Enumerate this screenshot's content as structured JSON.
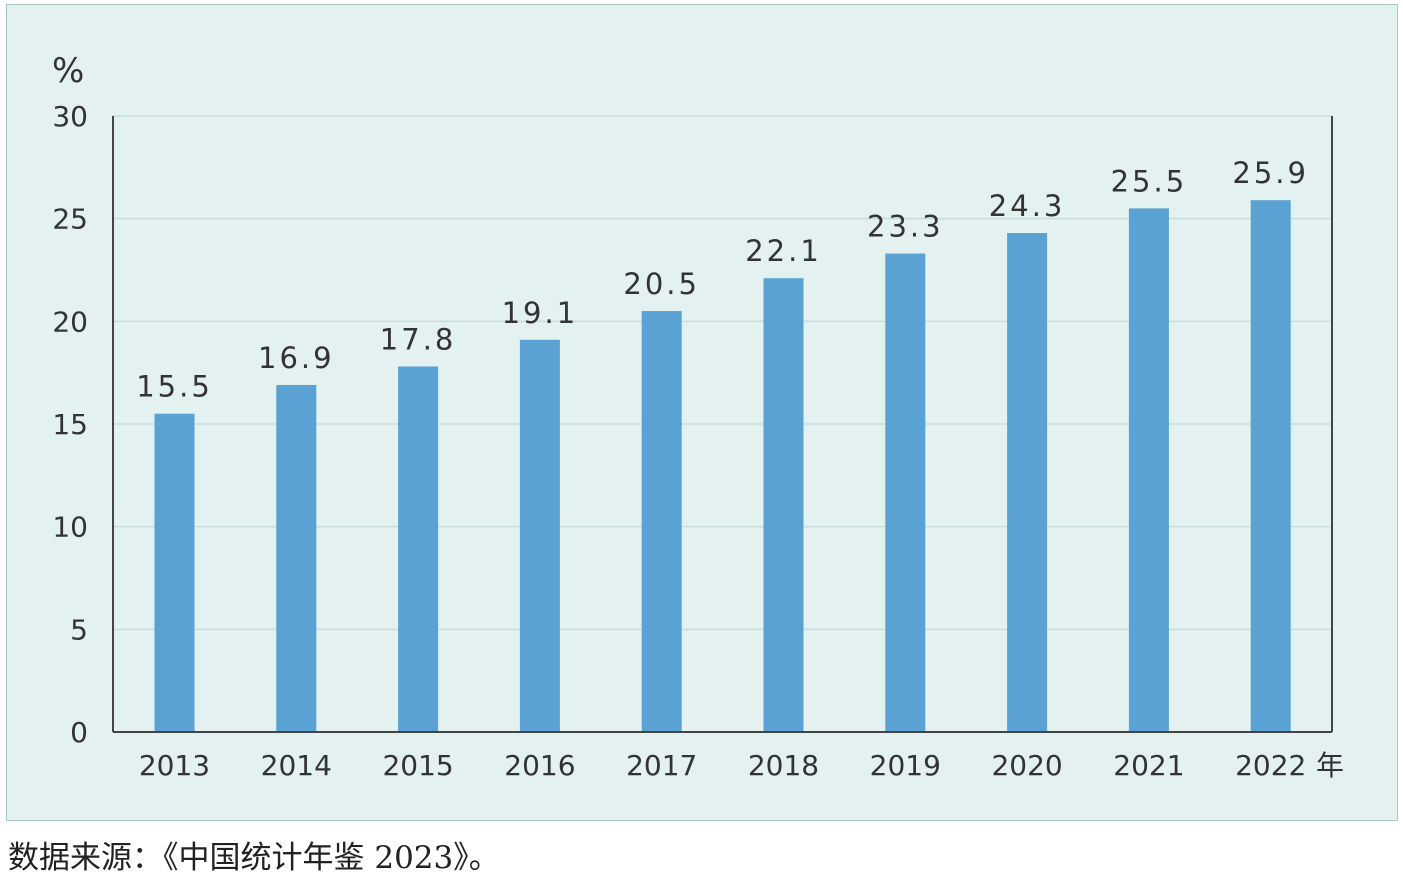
{
  "chart_data": {
    "type": "bar",
    "categories": [
      "2013",
      "2014",
      "2015",
      "2016",
      "2017",
      "2018",
      "2019",
      "2020",
      "2021",
      "2022"
    ],
    "values": [
      15.5,
      16.9,
      17.8,
      19.1,
      20.5,
      22.1,
      23.3,
      24.3,
      25.5,
      25.9
    ],
    "value_labels": [
      "15.5",
      "16.9",
      "17.8",
      "19.1",
      "20.5",
      "22.1",
      "23.3",
      "24.3",
      "25.5",
      "25.9"
    ],
    "ylabel": "%",
    "xlabel": "年",
    "ylim": [
      0,
      30
    ],
    "yticks": [
      "0",
      "5",
      "10",
      "15",
      "20",
      "25",
      "30"
    ],
    "grid": true,
    "colors": {
      "bar": "#5aa1d4",
      "background": "#e3f1f0",
      "grid": "#c9dcdc",
      "axis": "#444444"
    }
  },
  "source_note": "数据来源：《中国统计年鉴 2023》。"
}
